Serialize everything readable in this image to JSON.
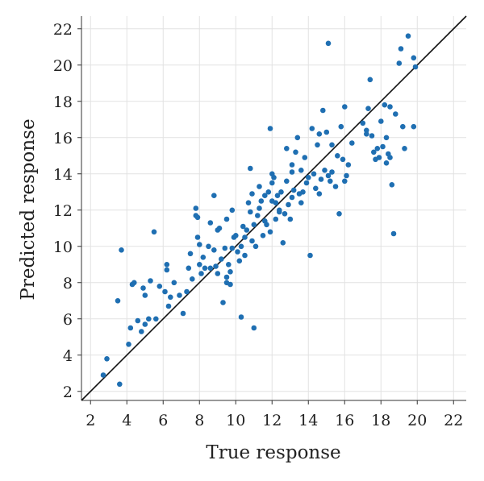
{
  "chart_data": {
    "type": "scatter",
    "title": "",
    "xlabel": "True response",
    "ylabel": "Predicted response",
    "xlim": [
      1.5,
      22.7
    ],
    "ylim": [
      1.5,
      22.7
    ],
    "xticks": [
      2,
      4,
      6,
      8,
      10,
      12,
      14,
      16,
      18,
      20,
      22
    ],
    "yticks": [
      2,
      4,
      6,
      8,
      10,
      12,
      14,
      16,
      18,
      20,
      22
    ],
    "grid": true,
    "legend": "none",
    "point_color": "#1f6fb2",
    "reference_line": {
      "from": [
        1.5,
        1.5
      ],
      "to": [
        22.7,
        22.7
      ],
      "color": "#111111"
    },
    "series": [
      {
        "points": [
          [
            2.7,
            2.9
          ],
          [
            2.9,
            3.8
          ],
          [
            3.5,
            7.0
          ],
          [
            3.6,
            2.4
          ],
          [
            3.7,
            9.8
          ],
          [
            4.1,
            4.6
          ],
          [
            4.2,
            5.5
          ],
          [
            4.3,
            7.9
          ],
          [
            4.4,
            8.0
          ],
          [
            4.6,
            5.9
          ],
          [
            4.8,
            5.3
          ],
          [
            4.9,
            7.7
          ],
          [
            5.0,
            7.3
          ],
          [
            5.0,
            5.7
          ],
          [
            5.2,
            6.0
          ],
          [
            5.3,
            8.1
          ],
          [
            5.5,
            10.8
          ],
          [
            5.6,
            6.0
          ],
          [
            5.8,
            7.8
          ],
          [
            6.1,
            7.5
          ],
          [
            6.2,
            9.0
          ],
          [
            6.2,
            8.7
          ],
          [
            6.3,
            6.7
          ],
          [
            6.6,
            8.0
          ],
          [
            6.9,
            7.3
          ],
          [
            7.1,
            6.3
          ],
          [
            7.3,
            7.5
          ],
          [
            7.5,
            9.6
          ],
          [
            7.6,
            8.2
          ],
          [
            7.8,
            12.1
          ],
          [
            7.8,
            11.7
          ],
          [
            7.9,
            10.5
          ],
          [
            7.9,
            11.6
          ],
          [
            8.0,
            9.0
          ],
          [
            8.0,
            10.1
          ],
          [
            8.1,
            8.5
          ],
          [
            8.2,
            9.4
          ],
          [
            8.3,
            8.8
          ],
          [
            8.5,
            10.0
          ],
          [
            8.6,
            11.3
          ],
          [
            8.8,
            12.8
          ],
          [
            8.8,
            9.8
          ],
          [
            8.9,
            8.9
          ],
          [
            9.0,
            10.9
          ],
          [
            9.0,
            8.5
          ],
          [
            9.1,
            11.0
          ],
          [
            9.2,
            9.3
          ],
          [
            9.3,
            6.9
          ],
          [
            9.5,
            8.0
          ],
          [
            9.5,
            8.3
          ],
          [
            9.5,
            11.5
          ],
          [
            9.6,
            9.0
          ],
          [
            9.7,
            7.9
          ],
          [
            9.7,
            8.6
          ],
          [
            9.8,
            9.9
          ],
          [
            9.8,
            12.0
          ],
          [
            9.9,
            10.5
          ],
          [
            10.0,
            10.6
          ],
          [
            10.1,
            9.7
          ],
          [
            10.2,
            9.2
          ],
          [
            10.3,
            6.1
          ],
          [
            10.3,
            10.0
          ],
          [
            10.4,
            11.1
          ],
          [
            10.5,
            9.5
          ],
          [
            10.6,
            10.9
          ],
          [
            10.7,
            12.4
          ],
          [
            10.8,
            11.9
          ],
          [
            10.8,
            14.3
          ],
          [
            10.9,
            10.3
          ],
          [
            11.0,
            5.5
          ],
          [
            11.0,
            11.2
          ],
          [
            11.1,
            10.0
          ],
          [
            11.2,
            11.7
          ],
          [
            11.3,
            12.1
          ],
          [
            11.3,
            13.3
          ],
          [
            11.4,
            12.5
          ],
          [
            11.5,
            10.6
          ],
          [
            11.6,
            11.4
          ],
          [
            11.7,
            11.2
          ],
          [
            11.8,
            13.0
          ],
          [
            11.9,
            16.5
          ],
          [
            11.9,
            10.8
          ],
          [
            12.0,
            12.5
          ],
          [
            12.0,
            14.0
          ],
          [
            12.1,
            13.8
          ],
          [
            12.2,
            11.5
          ],
          [
            12.3,
            12.8
          ],
          [
            12.4,
            12.0
          ],
          [
            12.5,
            13.0
          ],
          [
            12.6,
            10.2
          ],
          [
            12.7,
            11.8
          ],
          [
            12.8,
            13.6
          ],
          [
            12.8,
            15.4
          ],
          [
            12.9,
            12.3
          ],
          [
            13.0,
            11.5
          ],
          [
            13.1,
            12.7
          ],
          [
            13.1,
            14.5
          ],
          [
            13.2,
            13.1
          ],
          [
            13.3,
            15.2
          ],
          [
            13.4,
            16.0
          ],
          [
            13.5,
            12.9
          ],
          [
            13.6,
            14.2
          ],
          [
            13.7,
            13.0
          ],
          [
            13.8,
            14.9
          ],
          [
            13.9,
            13.5
          ],
          [
            14.0,
            13.8
          ],
          [
            14.1,
            9.5
          ],
          [
            14.2,
            16.5
          ],
          [
            14.3,
            14.0
          ],
          [
            14.4,
            13.2
          ],
          [
            14.5,
            15.6
          ],
          [
            14.6,
            16.2
          ],
          [
            14.7,
            13.7
          ],
          [
            14.8,
            17.5
          ],
          [
            14.9,
            14.2
          ],
          [
            15.0,
            16.3
          ],
          [
            15.1,
            21.2
          ],
          [
            15.1,
            13.9
          ],
          [
            15.2,
            13.6
          ],
          [
            15.3,
            15.6
          ],
          [
            15.5,
            13.3
          ],
          [
            15.6,
            15.0
          ],
          [
            15.7,
            11.8
          ],
          [
            15.8,
            16.6
          ],
          [
            15.9,
            14.8
          ],
          [
            16.0,
            17.7
          ],
          [
            16.1,
            13.9
          ],
          [
            16.2,
            14.5
          ],
          [
            16.4,
            15.7
          ],
          [
            17.0,
            16.8
          ],
          [
            17.2,
            16.4
          ],
          [
            17.3,
            17.6
          ],
          [
            17.4,
            19.2
          ],
          [
            17.5,
            16.1
          ],
          [
            17.6,
            15.2
          ],
          [
            17.7,
            14.8
          ],
          [
            17.8,
            15.4
          ],
          [
            17.9,
            14.9
          ],
          [
            18.0,
            16.9
          ],
          [
            18.1,
            15.5
          ],
          [
            18.2,
            17.8
          ],
          [
            18.3,
            14.6
          ],
          [
            18.4,
            15.1
          ],
          [
            18.5,
            14.9
          ],
          [
            18.5,
            17.7
          ],
          [
            18.6,
            13.4
          ],
          [
            18.7,
            10.7
          ],
          [
            18.8,
            17.3
          ],
          [
            19.0,
            20.1
          ],
          [
            19.1,
            20.9
          ],
          [
            19.2,
            16.6
          ],
          [
            19.3,
            15.4
          ],
          [
            19.5,
            21.6
          ],
          [
            19.8,
            16.6
          ],
          [
            19.8,
            20.4
          ],
          [
            19.9,
            19.9
          ],
          [
            18.3,
            16.0
          ],
          [
            17.2,
            16.2
          ],
          [
            16.0,
            13.6
          ],
          [
            15.3,
            14.1
          ],
          [
            14.6,
            12.9
          ],
          [
            13.6,
            12.4
          ],
          [
            12.4,
            11.9
          ],
          [
            11.6,
            12.8
          ],
          [
            10.5,
            10.5
          ],
          [
            9.4,
            9.9
          ],
          [
            8.6,
            8.8
          ],
          [
            7.4,
            8.8
          ],
          [
            6.4,
            7.2
          ],
          [
            10.9,
            12.9
          ],
          [
            12.0,
            13.5
          ],
          [
            13.1,
            14.1
          ],
          [
            12.2,
            12.4
          ]
        ]
      }
    ]
  }
}
